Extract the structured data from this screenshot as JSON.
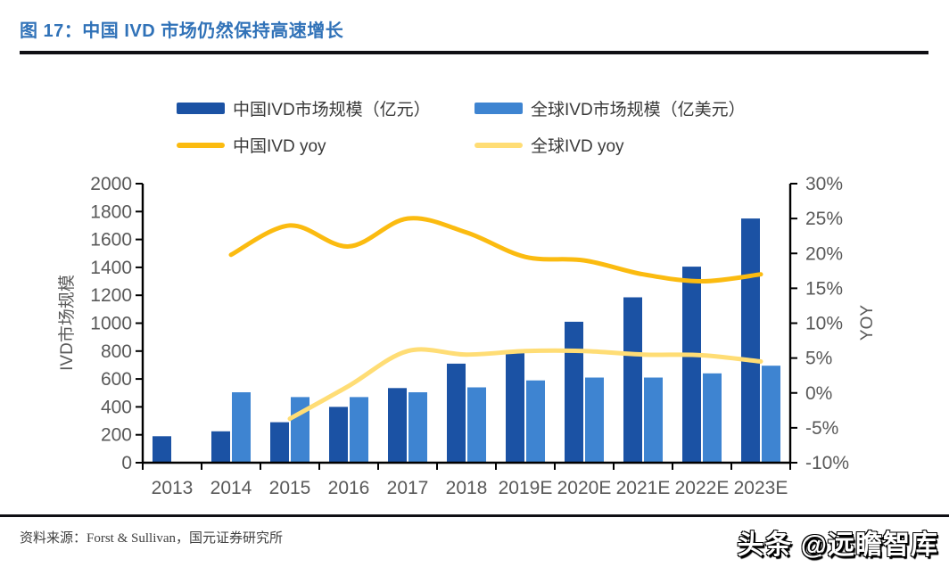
{
  "header": {
    "figure_title": "图 17：中国 IVD 市场仍然保持高速增长"
  },
  "legend": {
    "items": [
      {
        "label": "中国IVD市场规模（亿元）"
      },
      {
        "label": "全球IVD市场规模（亿美元）"
      },
      {
        "label": "中国IVD yoy"
      },
      {
        "label": "全球IVD yoy"
      }
    ]
  },
  "colors": {
    "china_bar": "#1B52A4",
    "global_bar": "#3E84D1",
    "china_line": "#FBBB10",
    "global_line": "#FFDD75",
    "title_blue": "#3072B8",
    "axis_text": "#595959",
    "rule_black": "#0f0f14"
  },
  "chart_data": {
    "type": "bar+line combo",
    "categories": [
      "2013",
      "2014",
      "2015",
      "2016",
      "2017",
      "2018",
      "2019E",
      "2020E",
      "2021E",
      "2022E",
      "2023E"
    ],
    "series": [
      {
        "name": "中国IVD市场规模（亿元）",
        "type": "bar",
        "axis": "left",
        "color": "#1B52A4",
        "values": [
          190,
          225,
          290,
          400,
          535,
          710,
          790,
          1010,
          1185,
          1405,
          1750
        ]
      },
      {
        "name": "全球IVD市场规模（亿美元）",
        "type": "bar",
        "axis": "left",
        "color": "#3E84D1",
        "values": [
          null,
          505,
          470,
          470,
          505,
          540,
          590,
          610,
          610,
          640,
          695
        ]
      },
      {
        "name": "中国IVD yoy",
        "type": "line",
        "axis": "right",
        "color": "#FBBB10",
        "values": [
          null,
          19.8,
          24,
          21,
          25,
          23,
          19.5,
          19,
          17,
          16,
          17
        ]
      },
      {
        "name": "全球IVD yoy",
        "type": "line",
        "axis": "right",
        "color": "#FFDD75",
        "values": [
          null,
          null,
          -3.7,
          1,
          6,
          5.5,
          6,
          6,
          5.5,
          5.4,
          4.5
        ]
      }
    ],
    "left_axis": {
      "title": "IVD市场规模",
      "min": 0,
      "max": 2000,
      "step": 200,
      "tick_labels": [
        "0",
        "200",
        "400",
        "600",
        "800",
        "1000",
        "1200",
        "1400",
        "1600",
        "1800",
        "2000"
      ]
    },
    "right_axis": {
      "title": "YOY",
      "min": -10,
      "max": 30,
      "step": 5,
      "tick_labels": [
        "-10%",
        "-5%",
        "0%",
        "5%",
        "10%",
        "15%",
        "20%",
        "25%",
        "30%"
      ]
    },
    "grid": false,
    "legend_position": "top"
  },
  "footer": {
    "source": "资料来源：Forst & Sullivan，国元证券研究所",
    "watermark": "头条 @远瞻智库"
  }
}
